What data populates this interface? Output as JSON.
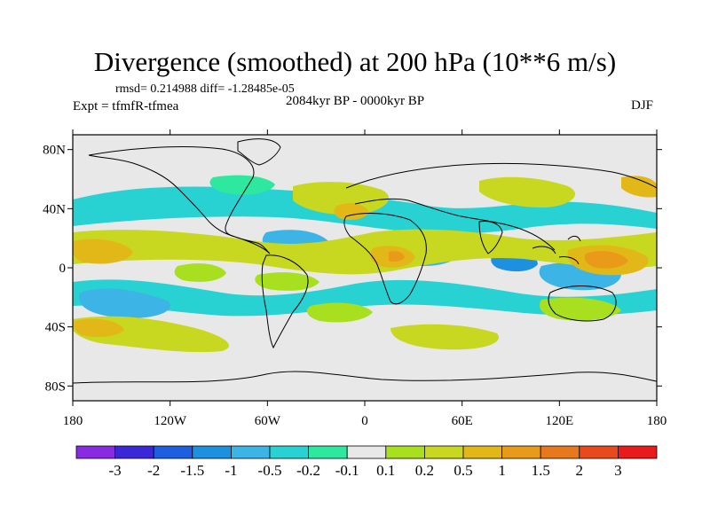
{
  "title": "Divergence (smoothed) at 200 hPa (10**6 m/s)",
  "stats": "rmsd= 0.214988  diff= -1.28485e-05",
  "experiment": "Expt = tfmfR-tfmea",
  "period": "2084kyr BP - 0000kyr BP",
  "season": "DJF",
  "map": {
    "background_color": "#e8e8e8",
    "lat_ticks": [
      {
        "label": "80N",
        "lat": 80
      },
      {
        "label": "40N",
        "lat": 40
      },
      {
        "label": "0",
        "lat": 0
      },
      {
        "label": "40S",
        "lat": -40
      },
      {
        "label": "80S",
        "lat": -80
      }
    ],
    "lon_ticks": [
      {
        "label": "180",
        "lon": -180
      },
      {
        "label": "120W",
        "lon": -120
      },
      {
        "label": "60W",
        "lon": -60
      },
      {
        "label": "0",
        "lon": 0
      },
      {
        "label": "60E",
        "lon": 60
      },
      {
        "label": "120E",
        "lon": 120
      },
      {
        "label": "180",
        "lon": 180
      }
    ]
  },
  "colorbar": {
    "colors": [
      "#8a2be2",
      "#3a28d8",
      "#1e5fe0",
      "#1e90e0",
      "#3cb4e6",
      "#28d2d2",
      "#2ee8a0",
      "#e8e8e8",
      "#a8e020",
      "#c8d820",
      "#e2b818",
      "#e89a18",
      "#e8781e",
      "#e84a1c",
      "#e81a1a"
    ],
    "labels": [
      "-3",
      "-2",
      "-1.5",
      "-1",
      "-0.5",
      "-0.2",
      "-0.1",
      "0.1",
      "0.2",
      "0.5",
      "1",
      "1.5",
      "2",
      "3"
    ]
  }
}
